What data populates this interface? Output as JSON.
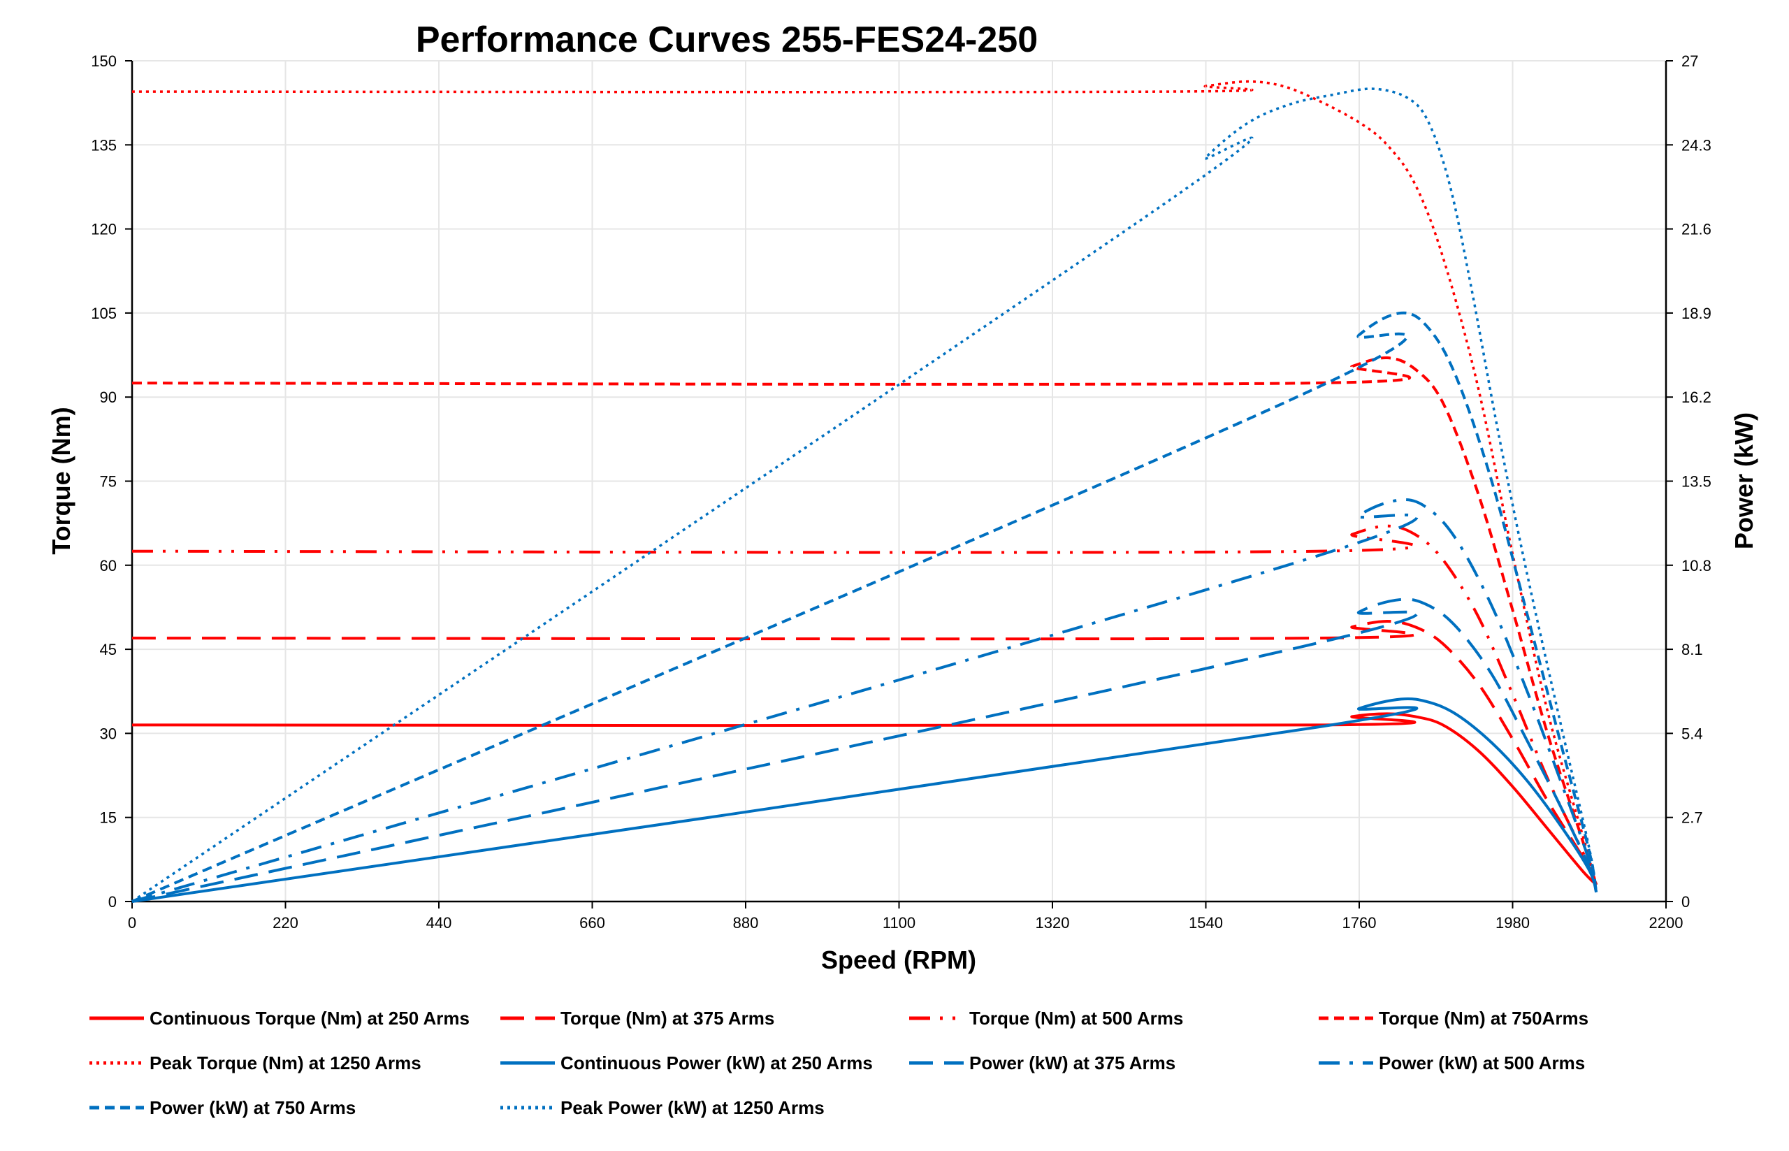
{
  "chart_data": {
    "type": "line",
    "title": "Performance Curves 255-FES24-250",
    "xlabel": "Speed (RPM)",
    "ylabel": "Torque (Nm)",
    "y2label": "Power (kW)",
    "xlim": [
      0,
      2200
    ],
    "ylim": [
      0,
      150
    ],
    "y2lim": [
      0,
      27
    ],
    "xticks": [
      "0",
      "220",
      "440",
      "660",
      "880",
      "1100",
      "1320",
      "1540",
      "1760",
      "1980",
      "2200"
    ],
    "yticks": [
      "0",
      "15",
      "30",
      "45",
      "60",
      "75",
      "90",
      "105",
      "120",
      "135",
      "150"
    ],
    "y2ticks": [
      "0",
      "2.7",
      "5.4",
      "8.1",
      "10.8",
      "13.5",
      "16.2",
      "18.9",
      "21.6",
      "24.3",
      "27"
    ],
    "grid": true,
    "legend_position": "bottom",
    "colors": {
      "torque": "#ff0000",
      "power": "#0070c0"
    },
    "series": [
      {
        "name": "Continuous Torque (Nm) at 250 Arms",
        "axis": "left",
        "color": "#ff0000",
        "style": "solid",
        "x": [
          0,
          1700,
          1750,
          1800,
          1840,
          1880,
          1930,
          1980,
          2030,
          2080,
          2100
        ],
        "y": [
          31.5,
          31.5,
          33,
          33.5,
          33,
          31.5,
          27,
          20.5,
          13,
          5.5,
          3
        ]
      },
      {
        "name": "Torque (Nm) at 375 Arms",
        "axis": "left",
        "color": "#ff0000",
        "style": "longdash",
        "x": [
          0,
          1700,
          1750,
          1800,
          1840,
          1880,
          1930,
          1980,
          2030,
          2080,
          2100
        ],
        "y": [
          47,
          47,
          49,
          50,
          49,
          46,
          39,
          29,
          18,
          8,
          3
        ]
      },
      {
        "name": "Torque (Nm) at 500 Arms",
        "axis": "left",
        "color": "#ff0000",
        "style": "dashdotdot",
        "x": [
          0,
          1700,
          1750,
          1800,
          1840,
          1880,
          1930,
          1980,
          2030,
          2080,
          2100
        ],
        "y": [
          62.5,
          62.5,
          65.5,
          67,
          65.5,
          61,
          51,
          37,
          22,
          9,
          3
        ]
      },
      {
        "name": "Torque (Nm) at 750Arms",
        "axis": "left",
        "color": "#ff0000",
        "style": "shortdash",
        "x": [
          0,
          1690,
          1750,
          1800,
          1840,
          1880,
          1930,
          1980,
          2030,
          2080,
          2100
        ],
        "y": [
          92.5,
          92.5,
          95.5,
          97,
          95,
          89,
          73,
          52,
          30,
          11,
          3
        ]
      },
      {
        "name": "Peak Torque (Nm) at 1250  Arms",
        "axis": "left",
        "color": "#ff0000",
        "style": "dot",
        "x": [
          0,
          1480,
          1540,
          1600,
          1650,
          1700,
          1760,
          1800,
          1840,
          1880,
          1930,
          1980,
          2030,
          2080,
          2100
        ],
        "y": [
          144.5,
          144.5,
          145.5,
          146.3,
          145.5,
          143,
          139,
          135,
          128,
          115,
          92,
          62,
          34,
          12,
          3
        ]
      },
      {
        "name": "Continuous Power (kW) at 250 Arms",
        "axis": "right",
        "color": "#0070c0",
        "style": "solid",
        "x": [
          0,
          1700,
          1760,
          1820,
          1860,
          1900,
          1950,
          2000,
          2050,
          2090,
          2100
        ],
        "y": [
          0,
          5.6,
          6.2,
          6.5,
          6.4,
          6.0,
          5.1,
          3.9,
          2.4,
          1.0,
          0.3
        ]
      },
      {
        "name": "Power (kW) at 375 Arms",
        "axis": "right",
        "color": "#0070c0",
        "style": "longdash",
        "x": [
          0,
          1700,
          1760,
          1820,
          1860,
          1900,
          1950,
          2000,
          2050,
          2090,
          2100
        ],
        "y": [
          0,
          8.3,
          9.3,
          9.7,
          9.5,
          8.8,
          7.3,
          5.2,
          3.0,
          1.1,
          0.3
        ]
      },
      {
        "name": "Power (kW) at 500 Arms",
        "axis": "right",
        "color": "#0070c0",
        "style": "dashdot",
        "x": [
          0,
          1700,
          1760,
          1820,
          1860,
          1900,
          1950,
          2000,
          2050,
          2090,
          2100
        ],
        "y": [
          0,
          11.1,
          12.4,
          12.9,
          12.6,
          11.6,
          9.5,
          6.8,
          3.8,
          1.3,
          0.3
        ]
      },
      {
        "name": "Power (kW) at 750 Arms",
        "axis": "right",
        "color": "#0070c0",
        "style": "shortdash",
        "x": [
          0,
          1680,
          1760,
          1820,
          1860,
          1900,
          1950,
          2000,
          2050,
          2090,
          2100
        ],
        "y": [
          0,
          16.3,
          18.2,
          18.9,
          18.4,
          16.8,
          13.5,
          9.3,
          5.0,
          1.6,
          0.3
        ]
      },
      {
        "name": "Peak Power (kW) at 1250 Arms",
        "axis": "right",
        "color": "#0070c0",
        "style": "dot",
        "x": [
          0,
          1480,
          1540,
          1600,
          1660,
          1720,
          1780,
          1830,
          1860,
          1890,
          1920,
          1960,
          2000,
          2050,
          2090,
          2100
        ],
        "y": [
          0,
          22.4,
          23.9,
          25.0,
          25.6,
          25.9,
          26.1,
          25.8,
          25.0,
          23.0,
          19.8,
          15.0,
          10.6,
          5.6,
          1.7,
          0.3
        ]
      }
    ]
  }
}
